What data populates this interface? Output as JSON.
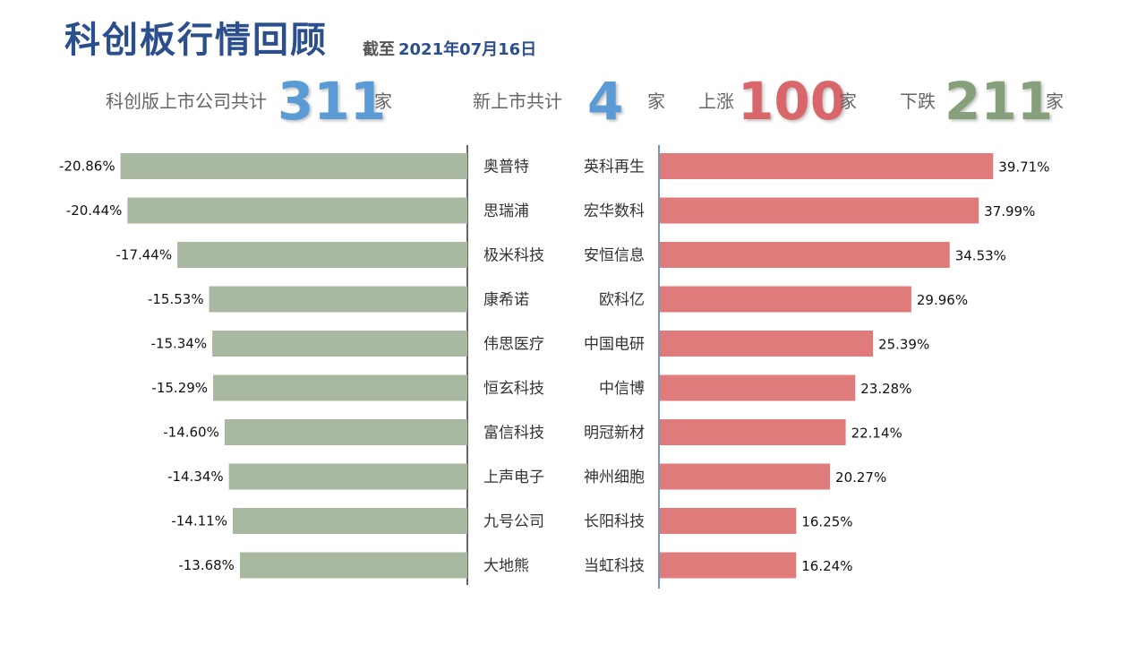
{
  "header": {
    "title": "科创板行情回顾",
    "date_prefix": "截至",
    "date": "2021年07月16日"
  },
  "stats": {
    "total_label": "科创版上市公司共计",
    "total_value": "311",
    "total_unit": "家",
    "new_label": "新上市共计",
    "new_value": "4",
    "new_unit": "家",
    "up_label": "上涨",
    "up_value": "100",
    "up_unit": "家",
    "down_label": "下跌",
    "down_value": "211",
    "down_unit": "家"
  },
  "colors": {
    "title": "#2b4f8c",
    "total": "#5b9bd5",
    "up": "#d9666b",
    "down": "#87a07c",
    "loser_bar": "#a9b8a0",
    "gainer_bar": "#e07b7b"
  },
  "chart_data": [
    {
      "type": "bar",
      "categories": [
        "奥普特",
        "思瑞浦",
        "极米科技",
        "康希诺",
        "伟思医疗",
        "恒玄科技",
        "富信科技",
        "上声电子",
        "九号公司",
        "大地熊"
      ],
      "values": [
        -20.86,
        -20.44,
        -17.44,
        -15.53,
        -15.34,
        -15.29,
        -14.6,
        -14.34,
        -14.11,
        -13.68
      ],
      "labels": [
        "-20.86%",
        "-20.44%",
        "-17.44%",
        "-15.53%",
        "-15.34%",
        "-15.29%",
        "-14.60%",
        "-14.34%",
        "-14.11%",
        "-13.68%"
      ],
      "orientation": "horizontal",
      "legend": "none",
      "grid": false
    },
    {
      "type": "bar",
      "categories": [
        "英科再生",
        "宏华数科",
        "安恒信息",
        "欧科亿",
        "中国电研",
        "中信博",
        "明冠新材",
        "神州细胞",
        "长阳科技",
        "当虹科技"
      ],
      "values": [
        39.71,
        37.99,
        34.53,
        29.96,
        25.39,
        23.28,
        22.14,
        20.27,
        16.25,
        16.24
      ],
      "labels": [
        "39.71%",
        "37.99%",
        "34.53%",
        "29.96%",
        "25.39%",
        "23.28%",
        "22.14%",
        "20.27%",
        "16.25%",
        "16.24%"
      ],
      "orientation": "horizontal",
      "legend": "none",
      "grid": false
    }
  ]
}
